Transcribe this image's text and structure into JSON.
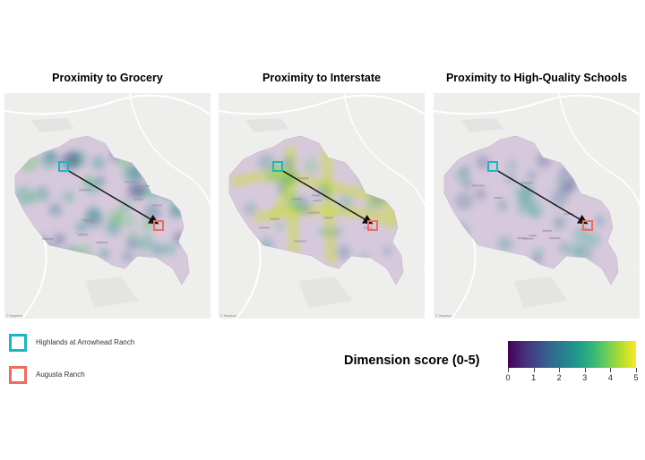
{
  "panels": [
    {
      "title": "Proximity to Grocery",
      "variant": "grocery"
    },
    {
      "title": "Proximity to Interstate",
      "variant": "interstate"
    },
    {
      "title": "Proximity to High-Quality Schools",
      "variant": "schools"
    }
  ],
  "map_attribution": "© Mapbox",
  "legend": {
    "items": [
      {
        "label": "Highlands at Arrowhead Ranch",
        "color": "#1fb5c0"
      },
      {
        "label": "Augusta Ranch",
        "color": "#ef6c5e"
      }
    ]
  },
  "colorbar": {
    "title": "Dimension score (0-5)",
    "ticks": [
      "0",
      "1",
      "2",
      "3",
      "4",
      "5"
    ],
    "min": 0,
    "max": 5,
    "colormap": "viridis"
  },
  "colors": {
    "highlands": "#1fb5c0",
    "augusta": "#ef6c5e",
    "arrow": "#111111",
    "region_low": "#d7c9dc"
  }
}
